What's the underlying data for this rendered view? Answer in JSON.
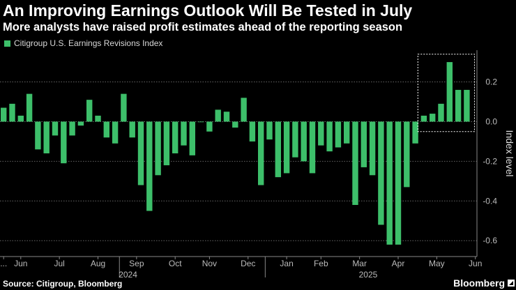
{
  "title": "An Improving Earnings Outlook Will Be Tested in July",
  "subtitle": "More analysts have raised profit estimates ahead of the reporting season",
  "source": "Source: Citigroup, Bloomberg",
  "brand": "Bloomberg",
  "colors": {
    "bar": "#3dbf6a",
    "background": "#000000",
    "grid": "#666666",
    "highlight_box": "#ffffff",
    "text": "#ffffff",
    "axis_text": "#bbbbbb"
  },
  "chart_data": {
    "type": "bar",
    "legend": [
      "Citigroup U.S. Earnings Revisions Index"
    ],
    "ylabel": "Index level",
    "y_side": "right",
    "ylim": [
      -0.68,
      0.36
    ],
    "yticks": [
      -0.6,
      -0.4,
      -0.2,
      0.0,
      0.2
    ],
    "ytick_labels": [
      "-0.6",
      "-0.4",
      "-0.2",
      "0.0",
      "0.2"
    ],
    "x_tick_labels": [
      "...",
      "Jun",
      "Jul",
      "Aug",
      "Sep",
      "Oct",
      "Nov",
      "Dec",
      "Jan",
      "Feb",
      "Mar",
      "Apr",
      "May",
      "Jun"
    ],
    "x_tick_weeks": [
      0,
      2,
      6.5,
      11,
      15.5,
      20,
      24,
      28.5,
      33,
      37,
      41.5,
      46,
      50.5,
      55
    ],
    "year_labels": [
      "2024",
      "2025"
    ],
    "year_label_weeks": [
      14.5,
      42.5
    ],
    "year_divider_weeks": [
      13.5,
      30.5
    ],
    "values": [
      0.07,
      0.09,
      0.03,
      0.14,
      -0.14,
      -0.16,
      -0.07,
      -0.21,
      -0.07,
      -0.02,
      0.11,
      0.03,
      -0.08,
      -0.11,
      0.14,
      -0.08,
      -0.32,
      -0.45,
      -0.27,
      -0.22,
      -0.16,
      -0.12,
      -0.17,
      0.0,
      -0.05,
      0.06,
      0.05,
      -0.03,
      0.12,
      -0.1,
      -0.32,
      -0.09,
      -0.28,
      -0.26,
      -0.18,
      -0.2,
      -0.26,
      -0.12,
      -0.15,
      -0.13,
      -0.11,
      -0.42,
      -0.23,
      -0.27,
      -0.52,
      -0.62,
      -0.62,
      -0.33,
      -0.11,
      0.03,
      0.04,
      0.09,
      0.3,
      0.16,
      0.16
    ],
    "annotation": "Dashed white box highlights the most recent positive readings",
    "annotation_weeks": [
      48.3,
      54.9
    ],
    "annotation_y": [
      -0.05,
      0.34
    ]
  }
}
